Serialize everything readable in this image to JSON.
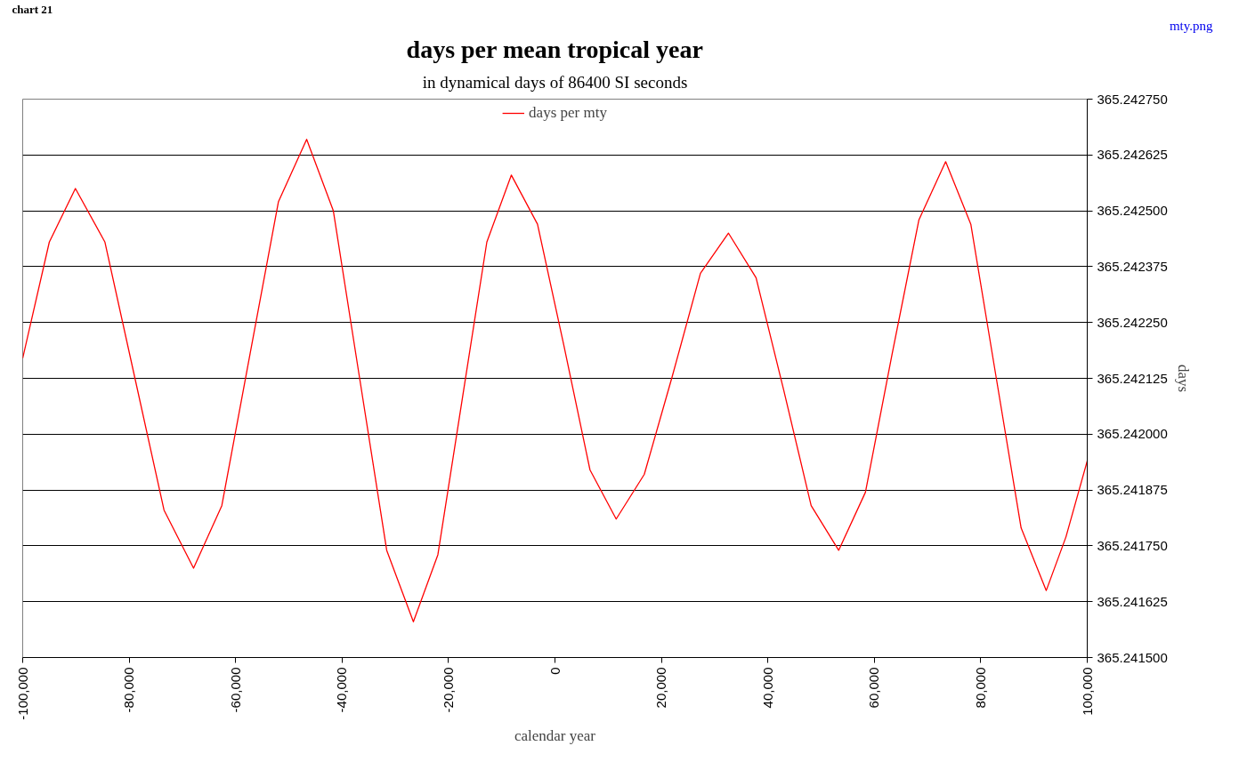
{
  "chart_data": {
    "type": "line",
    "title": "days per mean tropical year",
    "subtitle": "in dynamical days of 86400 SI seconds",
    "xlabel": "calendar year",
    "ylabel": "days",
    "annotations": [
      "chart 21",
      "mty.png"
    ],
    "x": [
      -100000,
      -95000,
      -90100,
      -84550,
      -79000,
      -73450,
      -67900,
      -62590,
      -57280,
      -51960,
      -46650,
      -41640,
      -36630,
      -31610,
      -26600,
      -22000,
      -17400,
      -12800,
      -8200,
      -3280,
      1650,
      6580,
      11500,
      16780,
      22050,
      27330,
      32600,
      37780,
      42950,
      48130,
      53300,
      58330,
      63350,
      68380,
      73400,
      78130,
      82850,
      87580,
      92300,
      96000,
      100000
    ],
    "series": [
      {
        "name": "days per mty",
        "color": "#ff0000",
        "values": [
          365.24217,
          365.24243,
          365.24255,
          365.24243,
          365.24213,
          365.24183,
          365.2417,
          365.24184,
          365.24218,
          365.24252,
          365.24266,
          365.2425,
          365.24212,
          365.24174,
          365.24158,
          365.24173,
          365.24208,
          365.24243,
          365.24258,
          365.24247,
          365.2422,
          365.24192,
          365.24181,
          365.24191,
          365.24213,
          365.24236,
          365.24245,
          365.24235,
          365.2421,
          365.24184,
          365.24174,
          365.24187,
          365.24218,
          365.24248,
          365.24261,
          365.24247,
          365.24213,
          365.24179,
          365.24165,
          365.24177,
          365.24194
        ]
      }
    ],
    "xlim": [
      -100000,
      100000
    ],
    "xticks": [
      {
        "value": -100000,
        "label": "-100,000"
      },
      {
        "value": -80000,
        "label": "-80,000"
      },
      {
        "value": -60000,
        "label": "-60,000"
      },
      {
        "value": -40000,
        "label": "-40,000"
      },
      {
        "value": -20000,
        "label": "-20,000"
      },
      0,
      {
        "value": 20000,
        "label": "20,000"
      },
      {
        "value": 40000,
        "label": "40,000"
      },
      {
        "value": 60000,
        "label": "60,000"
      },
      {
        "value": 80000,
        "label": "80,000"
      },
      {
        "value": 100000,
        "label": "100,000"
      }
    ],
    "ylim": [
      365.2415,
      365.24275
    ],
    "yticks": [
      {
        "value": 365.2415,
        "label": "365.241500"
      },
      {
        "value": 365.241625,
        "label": "365.241625"
      },
      {
        "value": 365.24175,
        "label": "365.241750"
      },
      {
        "value": 365.241875,
        "label": "365.241875"
      },
      {
        "value": 365.242,
        "label": "365.242000"
      },
      {
        "value": 365.242125,
        "label": "365.242125"
      },
      {
        "value": 365.24225,
        "label": "365.242250"
      },
      {
        "value": 365.242375,
        "label": "365.242375"
      },
      {
        "value": 365.2425,
        "label": "365.242500"
      },
      {
        "value": 365.242625,
        "label": "365.242625"
      },
      {
        "value": 365.24275,
        "label": "365.242750"
      }
    ],
    "grid": "y",
    "legend": "top",
    "marker": "none",
    "line_style": "solid"
  }
}
